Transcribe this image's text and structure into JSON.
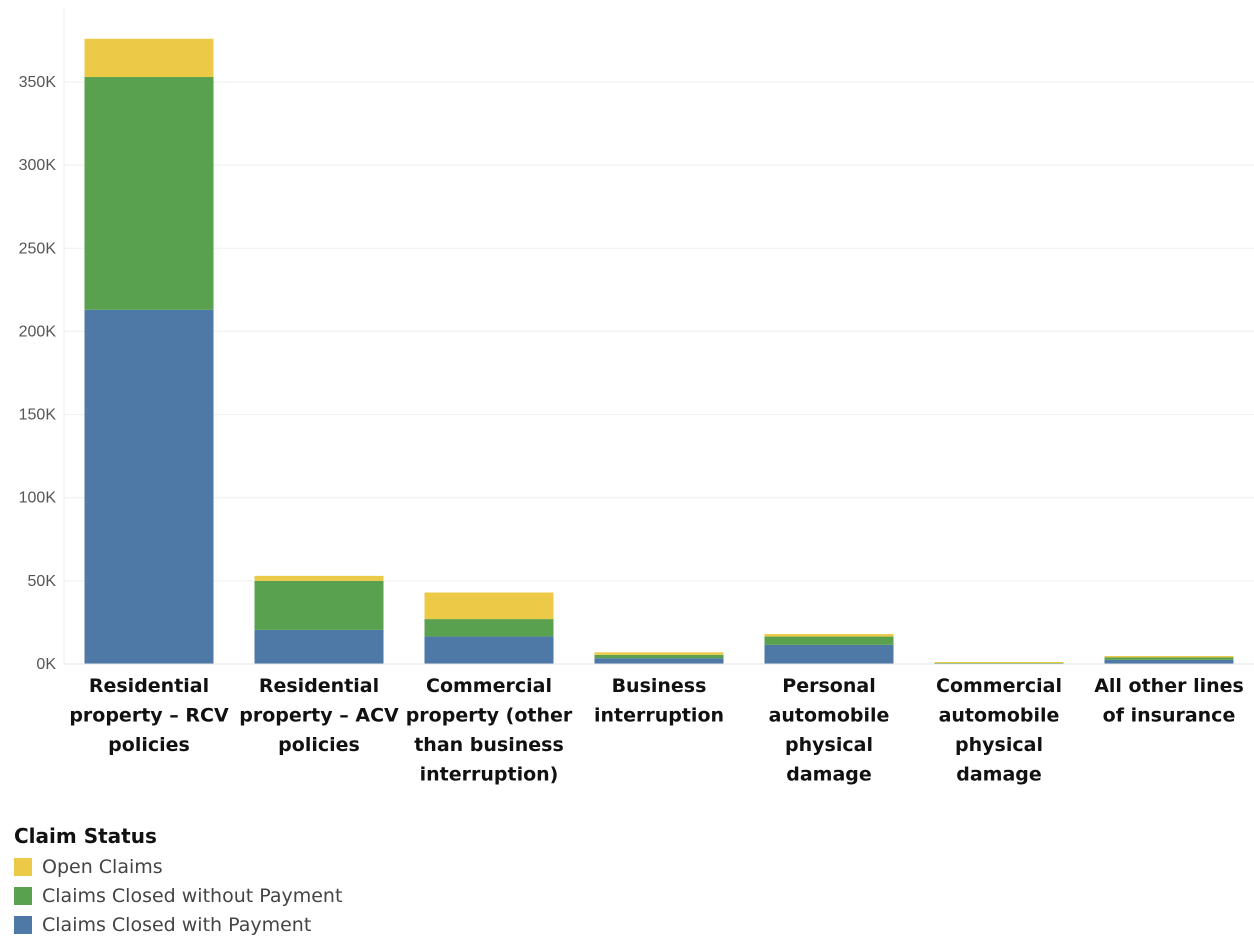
{
  "chart_data": {
    "type": "bar",
    "stacked": true,
    "categories": [
      "Residential property – RCV policies",
      "Residential property – ACV policies",
      "Commercial property (other than business interruption)",
      "Business interruption",
      "Personal automobile physical damage",
      "Commercial automobile physical damage",
      "All other lines of insurance"
    ],
    "category_lines": [
      [
        "Residential",
        "property – RCV",
        "policies"
      ],
      [
        "Residential",
        "property – ACV",
        "policies"
      ],
      [
        "Commercial",
        "property (other",
        "than business",
        "interruption)"
      ],
      [
        "Business",
        "interruption"
      ],
      [
        "Personal",
        "automobile",
        "physical",
        "damage"
      ],
      [
        "Commercial",
        "automobile",
        "physical",
        "damage"
      ],
      [
        "All other lines",
        "of insurance"
      ]
    ],
    "series": [
      {
        "name": "Claims Closed with Payment",
        "color": "#4e79a7",
        "values": [
          213000,
          20500,
          16500,
          3500,
          11500,
          300,
          2500
        ]
      },
      {
        "name": "Claims Closed without Payment",
        "color": "#59a14f",
        "values": [
          140000,
          29500,
          10500,
          2000,
          5000,
          300,
          1500
        ]
      },
      {
        "name": "Open Claims",
        "color": "#edc948",
        "values": [
          23000,
          3000,
          16000,
          1500,
          1500,
          500,
          800
        ]
      }
    ],
    "yticks": [
      "0K",
      "50K",
      "100K",
      "150K",
      "200K",
      "250K",
      "300K",
      "350K"
    ],
    "ylim": [
      0,
      380000
    ],
    "grid": true,
    "legend": {
      "title": "Claim Status",
      "position": "bottom-left",
      "items": [
        {
          "label": "Open Claims",
          "color": "#edc948"
        },
        {
          "label": "Claims Closed without Payment",
          "color": "#59a14f"
        },
        {
          "label": "Claims Closed with Payment",
          "color": "#4e79a7"
        }
      ]
    }
  }
}
